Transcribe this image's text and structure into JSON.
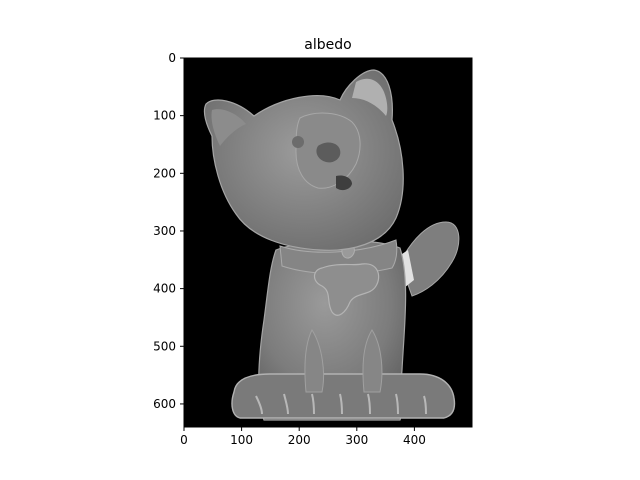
{
  "chart_data": {
    "type": "heatmap",
    "title": "albedo",
    "xlabel": "",
    "ylabel": "",
    "xlim": [
      0,
      500
    ],
    "ylim": [
      640,
      0
    ],
    "xticks": [
      0,
      100,
      200,
      300,
      400
    ],
    "yticks": [
      0,
      100,
      200,
      300,
      400,
      500,
      600
    ],
    "colormap": "gray",
    "background": "#000000",
    "image_subject": "cat-figurine-albedo-map",
    "grid": false,
    "legend": "none"
  }
}
